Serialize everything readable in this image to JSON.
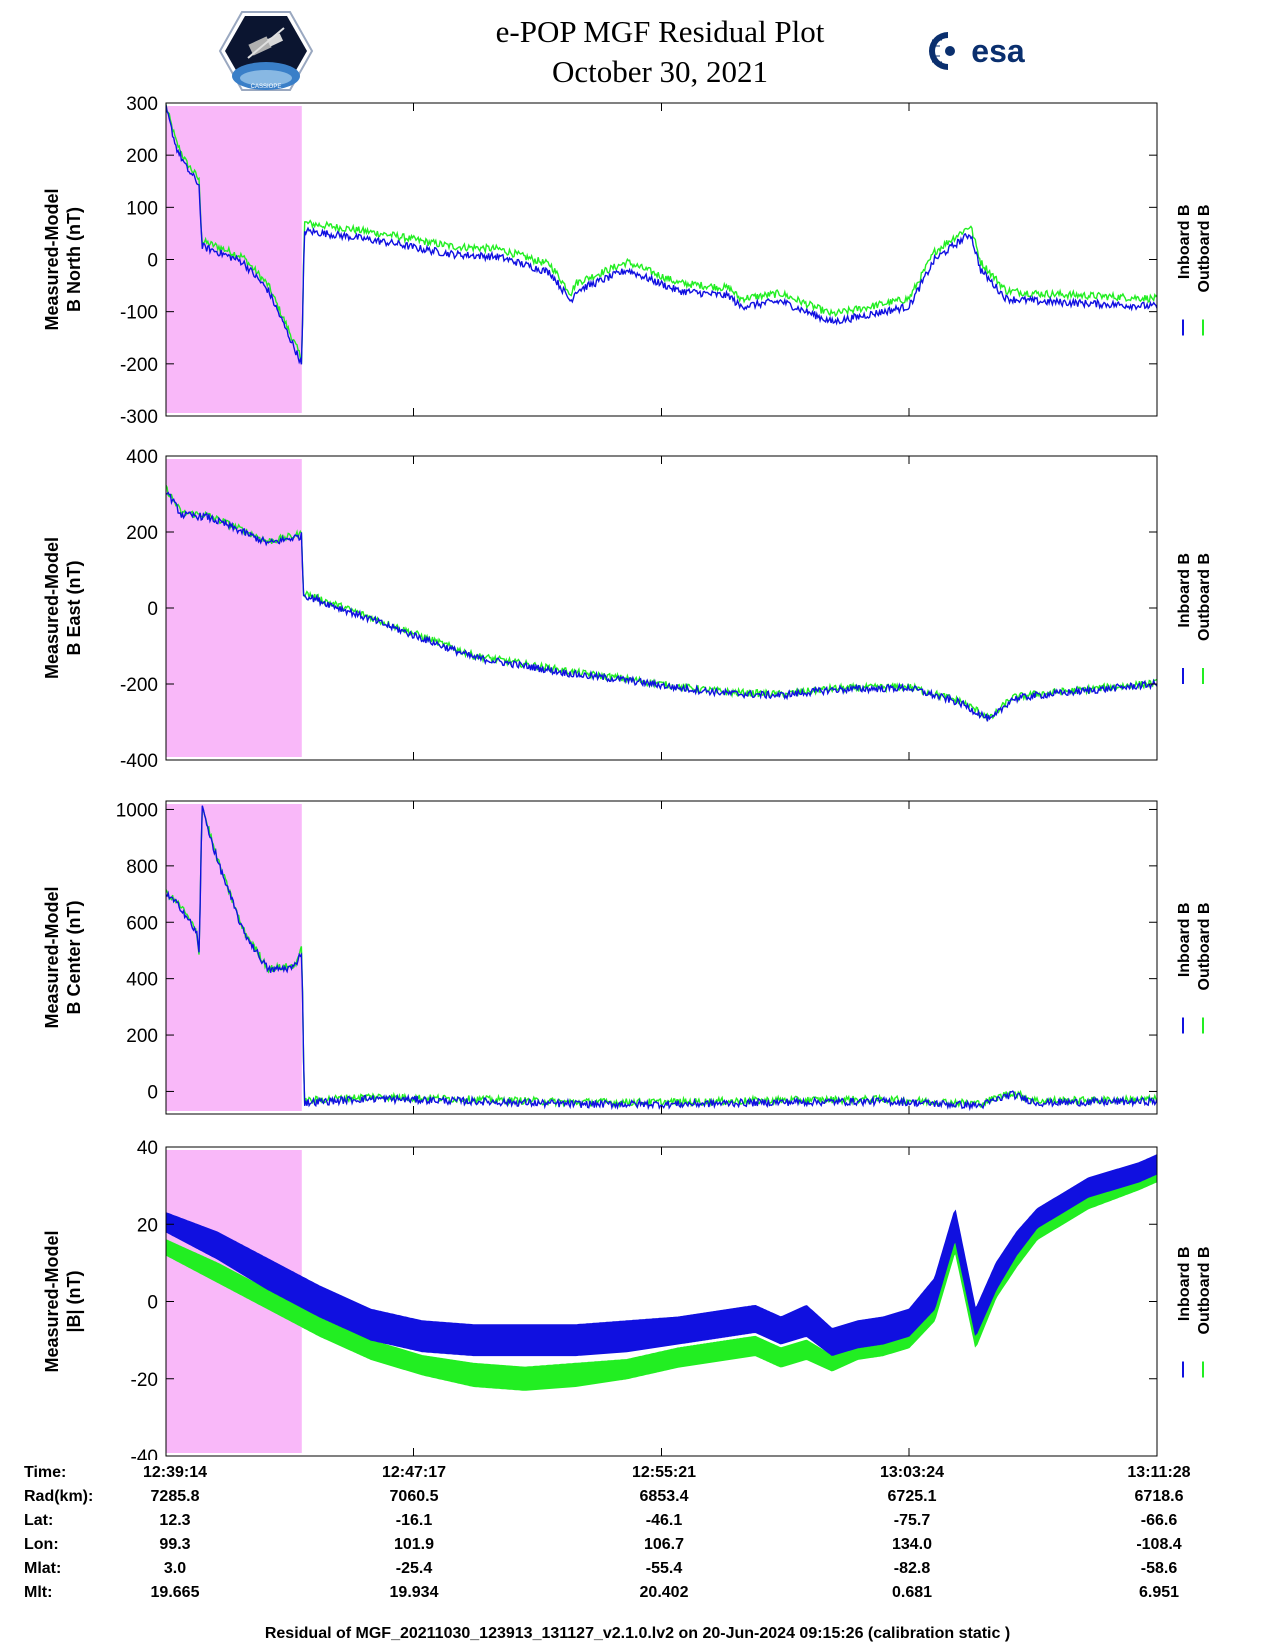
{
  "header": {
    "title_line_1": "e-POP MGF Residual Plot",
    "title_line_2": "October 30, 2021",
    "left_logo_text": "CASSIOPE",
    "left_logo_icon": "satellite-mission-patch-icon",
    "right_logo_text": "esa",
    "right_logo_icon": "esa-logo-icon"
  },
  "colors": {
    "inboard": "#1010e0",
    "outboard": "#22ee22",
    "highlight": "#f9b8f9"
  },
  "chart_data": [
    {
      "type": "line",
      "ylabel_line1": "Measured-Model",
      "ylabel_line2": "B North (nT)",
      "ylim": [
        -300,
        300
      ],
      "yticks": [
        300,
        200,
        100,
        0,
        -100,
        -200,
        -300
      ],
      "xlim_seconds": [
        0,
        1934
      ],
      "xtick_seconds": [
        0,
        483,
        967,
        1450,
        1934
      ],
      "highlight_seconds": [
        0,
        265
      ],
      "legend": [
        "Inboard B",
        "Outboard B"
      ],
      "series": [
        {
          "name": "Inboard B",
          "x": [
            0,
            20,
            40,
            60,
            65,
            70,
            100,
            150,
            200,
            260,
            265,
            270,
            350,
            450,
            500,
            560,
            650,
            750,
            790,
            800,
            900,
            1000,
            1100,
            1120,
            1200,
            1300,
            1450,
            1500,
            1570,
            1590,
            1640,
            1700,
            1934
          ],
          "y": [
            290,
            215,
            175,
            150,
            140,
            25,
            15,
            -5,
            -60,
            -190,
            -205,
            55,
            45,
            30,
            20,
            10,
            5,
            -25,
            -80,
            -60,
            -20,
            -60,
            -70,
            -90,
            -80,
            -120,
            -90,
            0,
            50,
            -20,
            -75,
            -80,
            -90
          ]
        },
        {
          "name": "Outboard B",
          "x": [
            0,
            20,
            40,
            60,
            65,
            70,
            100,
            150,
            200,
            260,
            265,
            270,
            350,
            450,
            500,
            560,
            650,
            750,
            790,
            800,
            900,
            1000,
            1100,
            1120,
            1200,
            1300,
            1450,
            1500,
            1570,
            1590,
            1640,
            1700,
            1934
          ],
          "y": [
            295,
            225,
            185,
            160,
            150,
            35,
            25,
            5,
            -50,
            -180,
            -195,
            70,
            60,
            45,
            35,
            25,
            20,
            -10,
            -65,
            -45,
            -5,
            -45,
            -55,
            -75,
            -65,
            -105,
            -75,
            15,
            65,
            -5,
            -60,
            -65,
            -75
          ]
        }
      ]
    },
    {
      "type": "line",
      "ylabel_line1": "Measured-Model",
      "ylabel_line2": "B East (nT)",
      "ylim": [
        -400,
        400
      ],
      "yticks": [
        400,
        200,
        0,
        -200,
        -400
      ],
      "xlim_seconds": [
        0,
        1934
      ],
      "xtick_seconds": [
        0,
        483,
        967,
        1450,
        1934
      ],
      "highlight_seconds": [
        0,
        265
      ],
      "legend": [
        "Inboard B",
        "Outboard B"
      ],
      "series": [
        {
          "name": "Inboard B",
          "x": [
            0,
            30,
            80,
            150,
            200,
            265,
            268,
            400,
            600,
            800,
            900,
            1000,
            1100,
            1200,
            1300,
            1450,
            1550,
            1610,
            1650,
            1700,
            1934
          ],
          "y": [
            310,
            245,
            240,
            200,
            170,
            190,
            35,
            -30,
            -130,
            -175,
            -190,
            -210,
            -225,
            -230,
            -215,
            -210,
            -250,
            -295,
            -240,
            -230,
            -200
          ]
        },
        {
          "name": "Outboard B",
          "x": [
            0,
            30,
            80,
            150,
            200,
            265,
            268,
            400,
            600,
            800,
            900,
            1000,
            1100,
            1200,
            1300,
            1450,
            1550,
            1610,
            1650,
            1700,
            1934
          ],
          "y": [
            315,
            250,
            245,
            205,
            175,
            195,
            40,
            -25,
            -125,
            -170,
            -187,
            -207,
            -222,
            -227,
            -212,
            -207,
            -245,
            -290,
            -236,
            -226,
            -197
          ]
        }
      ]
    },
    {
      "type": "line",
      "ylabel_line1": "Measured-Model",
      "ylabel_line2": "B Center (nT)",
      "ylim": [
        -80,
        1030
      ],
      "yticks": [
        1000,
        800,
        600,
        400,
        200,
        0
      ],
      "xlim_seconds": [
        0,
        1934
      ],
      "xtick_seconds": [
        0,
        483,
        967,
        1450,
        1934
      ],
      "highlight_seconds": [
        0,
        265
      ],
      "legend": [
        "Inboard B",
        "Outboard B"
      ],
      "series": [
        {
          "name": "Inboard B",
          "x": [
            0,
            30,
            60,
            65,
            70,
            100,
            150,
            200,
            250,
            265,
            270,
            400,
            600,
            800,
            1000,
            1200,
            1400,
            1590,
            1650,
            1700,
            1934
          ],
          "y": [
            700,
            650,
            560,
            480,
            1010,
            820,
            570,
            430,
            440,
            500,
            -40,
            -25,
            -35,
            -45,
            -45,
            -38,
            -35,
            -50,
            -10,
            -40,
            -35
          ]
        },
        {
          "name": "Outboard B",
          "x": [
            0,
            30,
            60,
            65,
            70,
            100,
            150,
            200,
            250,
            265,
            270,
            400,
            600,
            800,
            1000,
            1200,
            1400,
            1590,
            1650,
            1700,
            1934
          ],
          "y": [
            705,
            655,
            565,
            485,
            1015,
            825,
            575,
            435,
            445,
            505,
            -33,
            -18,
            -28,
            -38,
            -38,
            -31,
            -28,
            -43,
            -3,
            -33,
            -28
          ]
        }
      ]
    },
    {
      "type": "area",
      "ylabel_line1": "Measured-Model",
      "ylabel_line2": "|B| (nT)",
      "ylim": [
        -40,
        40
      ],
      "yticks": [
        40,
        20,
        0,
        -20,
        -40
      ],
      "xlim_seconds": [
        0,
        1934
      ],
      "xtick_seconds": [
        0,
        483,
        967,
        1450,
        1934
      ],
      "highlight_seconds": [
        0,
        265
      ],
      "legend": [
        "Inboard B",
        "Outboard B"
      ],
      "series": [
        {
          "name": "Inboard B",
          "x": [
            0,
            100,
            200,
            300,
            400,
            500,
            600,
            700,
            800,
            900,
            1000,
            1100,
            1150,
            1200,
            1250,
            1300,
            1350,
            1400,
            1450,
            1500,
            1540,
            1580,
            1620,
            1660,
            1700,
            1800,
            1900,
            1934
          ],
          "upper": [
            23,
            18,
            11,
            4,
            -2,
            -5,
            -6,
            -6,
            -6,
            -5,
            -4,
            -2,
            -1,
            -4,
            -1,
            -7,
            -5,
            -4,
            -2,
            6,
            24,
            -2,
            10,
            18,
            24,
            32,
            36,
            38
          ],
          "lower": [
            18,
            11,
            3,
            -4,
            -10,
            -13,
            -14,
            -14,
            -14,
            -13,
            -11,
            -9,
            -8,
            -11,
            -9,
            -14,
            -12,
            -11,
            -9,
            -2,
            16,
            -9,
            3,
            12,
            19,
            27,
            31,
            33
          ]
        },
        {
          "name": "Outboard B",
          "x": [
            0,
            100,
            200,
            300,
            400,
            500,
            600,
            700,
            800,
            900,
            1000,
            1100,
            1150,
            1200,
            1250,
            1300,
            1350,
            1400,
            1450,
            1500,
            1540,
            1580,
            1620,
            1660,
            1700,
            1800,
            1900,
            1934
          ],
          "upper": [
            16,
            10,
            3,
            -4,
            -10,
            -14,
            -16,
            -17,
            -16,
            -15,
            -12,
            -10,
            -9,
            -12,
            -10,
            -14,
            -11,
            -10,
            -8,
            0,
            17,
            -8,
            4,
            12,
            19,
            27,
            32,
            34
          ],
          "lower": [
            12,
            5,
            -2,
            -9,
            -15,
            -19,
            -22,
            -23,
            -22,
            -20,
            -17,
            -15,
            -14,
            -17,
            -15,
            -18,
            -15,
            -14,
            -12,
            -5,
            13,
            -12,
            1,
            9,
            16,
            24,
            29,
            31
          ]
        }
      ]
    }
  ],
  "info_table": {
    "labels": [
      "Time:",
      "Rad(km):",
      "Lat:",
      "Lon:",
      "Mlat:",
      "Mlt:"
    ],
    "columns": [
      [
        "12:39:14",
        "7285.8",
        "12.3",
        "99.3",
        "3.0",
        "19.665"
      ],
      [
        "12:47:17",
        "7060.5",
        "-16.1",
        "101.9",
        "-25.4",
        "19.934"
      ],
      [
        "12:55:21",
        "6853.4",
        "-46.1",
        "106.7",
        "-55.4",
        "20.402"
      ],
      [
        "13:03:24",
        "6725.1",
        "-75.7",
        "134.0",
        "-82.8",
        "0.681"
      ],
      [
        "13:11:28",
        "6718.6",
        "-66.6",
        "-108.4",
        "-58.6",
        "6.951"
      ]
    ]
  },
  "footer": "Residual of MGF_20211030_123913_131127_v2.1.0.lv2 on 20-Jun-2024 09:15:26 (calibration static )"
}
